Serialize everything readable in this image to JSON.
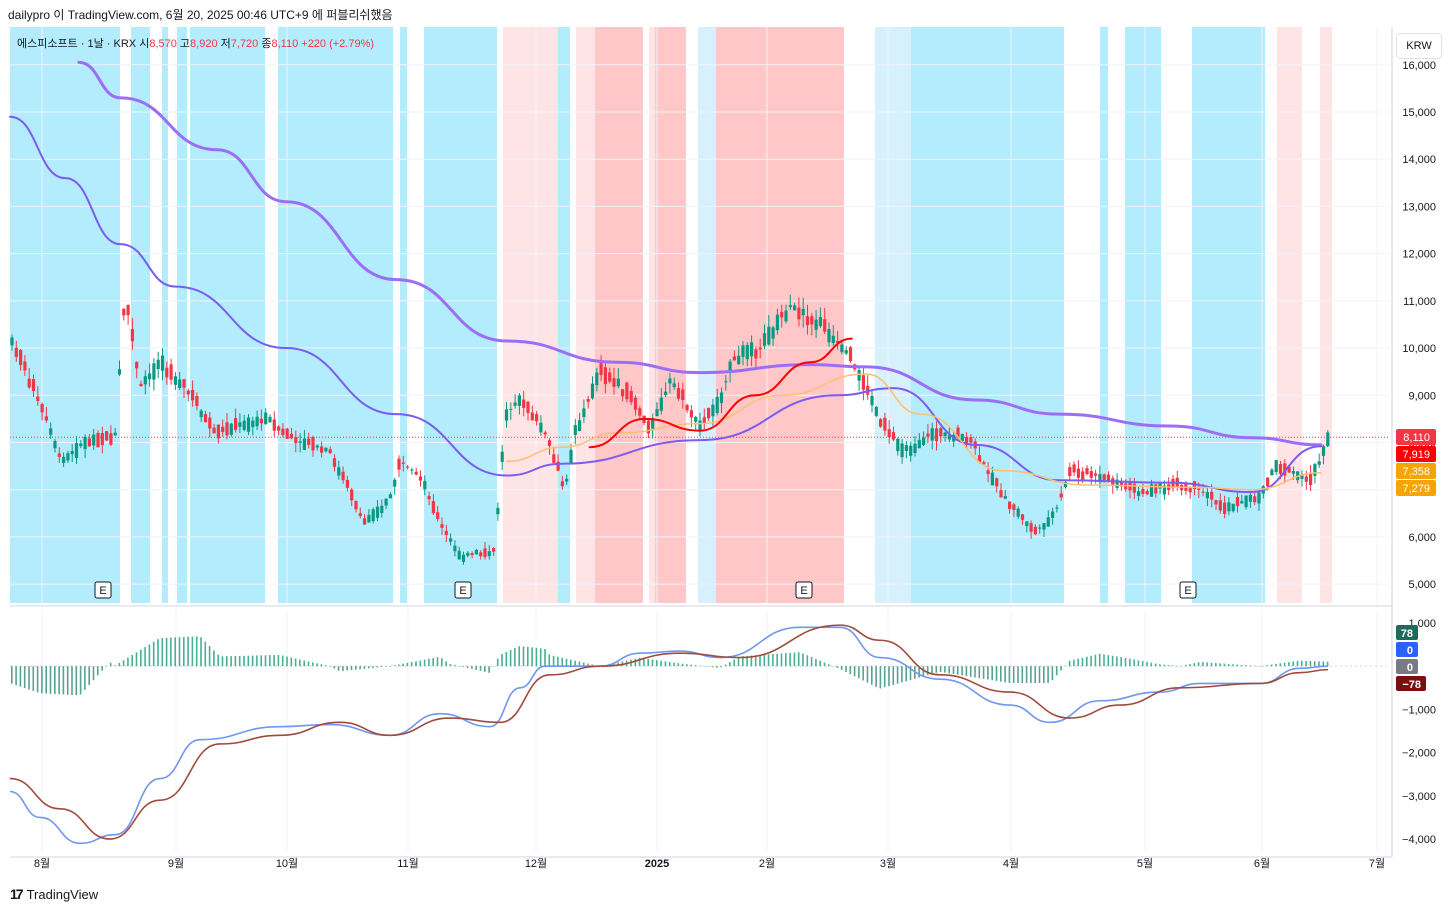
{
  "header": {
    "text": "dailypro 이 TradingView.com, 6월 20, 2025 00:46 UTC+9 에 퍼블리쉬했음"
  },
  "legend": {
    "symbol": "에스피소프트 · 1날 · KRX",
    "open_label": "시",
    "open": "8,570",
    "high_label": "고",
    "high": "8,920",
    "low_label": "저",
    "low": "7,720",
    "close_label": "종",
    "close": "8,110",
    "change": "+220 (+2.79%)"
  },
  "currency_button": "KRW",
  "footer": {
    "logo_mark": "17",
    "logo_text": "TradingView"
  },
  "colors": {
    "up": "#089981",
    "down": "#f23645",
    "bg_blue": "#b3ecfd",
    "bg_lightblue": "#d6f1fc",
    "bg_red": "#ffc7c7",
    "bg_pink": "#ffe4e6",
    "ma_long": "#9c6ef5",
    "ma_mid": "#7b5cf0",
    "ma_short": "#ffbf70",
    "macd": "#6f96f0",
    "signal": "#9e4b3b"
  },
  "chart_data": [
    {
      "type": "candlestick",
      "price_axis": {
        "min": 5000,
        "max": 16000,
        "ticks": [
          "16,000",
          "15,000",
          "14,000",
          "13,000",
          "12,000",
          "11,000",
          "10,000",
          "9,000",
          "8,000",
          "7,000",
          "6,000",
          "5,000"
        ]
      },
      "time_axis": {
        "labels": [
          "8월",
          "9월",
          "10월",
          "11월",
          "12월",
          "2025",
          "2월",
          "3월",
          "4월",
          "5월",
          "6월",
          "7월"
        ]
      },
      "last_close": 8110,
      "price_labels": [
        {
          "value": "8,110",
          "color": "#f23645"
        },
        {
          "value": "7,919",
          "color": "#ff0000"
        },
        {
          "value": "7,358",
          "color": "#f7a400"
        },
        {
          "value": "7,279",
          "color": "#f7a400"
        }
      ],
      "earnings_markers": [
        "E",
        "E",
        "E",
        "E"
      ],
      "series": [
        {
          "name": "MA long",
          "color": "#9c6ef5",
          "values": [
            [
              0.05,
              16050
            ],
            [
              0.08,
              15300
            ],
            [
              0.15,
              14200
            ],
            [
              0.2,
              13100
            ],
            [
              0.28,
              11450
            ],
            [
              0.36,
              10150
            ],
            [
              0.44,
              9700
            ],
            [
              0.5,
              9480
            ],
            [
              0.58,
              9650
            ],
            [
              0.62,
              9600
            ],
            [
              0.7,
              8900
            ],
            [
              0.76,
              8600
            ],
            [
              0.84,
              8350
            ],
            [
              0.9,
              8100
            ],
            [
              0.95,
              7950
            ]
          ]
        },
        {
          "name": "MA mid",
          "color": "#7b5cf0",
          "values": [
            [
              0.0,
              14900
            ],
            [
              0.04,
              13600
            ],
            [
              0.08,
              12200
            ],
            [
              0.12,
              11300
            ],
            [
              0.2,
              10000
            ],
            [
              0.28,
              8600
            ],
            [
              0.36,
              7300
            ],
            [
              0.4,
              7550
            ],
            [
              0.5,
              8050
            ],
            [
              0.6,
              9000
            ],
            [
              0.64,
              9150
            ],
            [
              0.7,
              7950
            ],
            [
              0.76,
              7200
            ],
            [
              0.84,
              7150
            ],
            [
              0.9,
              6950
            ],
            [
              0.95,
              7920
            ]
          ]
        },
        {
          "name": "MA short",
          "color": "#ffbf70",
          "values": [
            [
              0.36,
              7600
            ],
            [
              0.4,
              7900
            ],
            [
              0.44,
              8200
            ],
            [
              0.5,
              8400
            ],
            [
              0.56,
              9000
            ],
            [
              0.62,
              9450
            ],
            [
              0.66,
              8600
            ],
            [
              0.72,
              7400
            ],
            [
              0.78,
              7100
            ],
            [
              0.86,
              7050
            ],
            [
              0.9,
              7000
            ],
            [
              0.95,
              7360
            ]
          ]
        },
        {
          "name": "MA red",
          "color": "#ff0000",
          "values": [
            [
              0.42,
              7900
            ],
            [
              0.46,
              8500
            ],
            [
              0.5,
              8250
            ],
            [
              0.54,
              9000
            ],
            [
              0.58,
              9700
            ],
            [
              0.61,
              10200
            ]
          ]
        }
      ]
    },
    {
      "type": "macd",
      "axis": {
        "min": -4000,
        "max": 1000,
        "ticks": [
          "1,000",
          "0",
          "−1,000",
          "−2,000",
          "−3,000",
          "−4,000"
        ]
      },
      "value_labels": [
        {
          "value": "78",
          "color": "#1e6b5c"
        },
        {
          "value": "0",
          "color": "#2962ff"
        },
        {
          "value": "0",
          "color": "#787b86"
        },
        {
          "value": "−78",
          "color": "#7b0f0f"
        }
      ],
      "series": [
        {
          "name": "MACD",
          "color": "#6f96f0"
        },
        {
          "name": "Signal",
          "color": "#9e4b3b"
        }
      ]
    }
  ]
}
